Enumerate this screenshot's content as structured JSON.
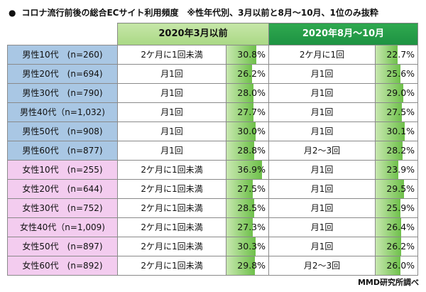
{
  "title": "コロナ流行前後の総合ECサイト利用頻度　※性年代別、3月以前と8月～10月、1位のみ抜粋",
  "header": {
    "period1": "2020年3月以前",
    "period2": "2020年8月～10月"
  },
  "source": "MMD研究所調べ",
  "colors": {
    "male_group": "#a9c7e4",
    "female_group": "#f3ccef",
    "header_period1": "#b9df96",
    "header_period2": "#23994a",
    "bar": "#6ec04a"
  },
  "chart_data": {
    "type": "table",
    "title": "コロナ流行前後の総合ECサイト利用頻度　※性年代別、3月以前と8月～10月、1位のみ抜粋",
    "columns": [
      "",
      "2020年3月以前",
      "",
      "2020年8月～10月",
      ""
    ],
    "rows": [
      {
        "group": "男性10代　(n=260)",
        "gender": "male",
        "freq1": "2ケ月に1回未満",
        "pct1": 30.8,
        "freq2": "2ケ月に1回",
        "pct2": 22.7
      },
      {
        "group": "男性20代　(n=694)",
        "gender": "male",
        "freq1": "月1回",
        "pct1": 26.2,
        "freq2": "月1回",
        "pct2": 25.6
      },
      {
        "group": "男性30代　(n=790)",
        "gender": "male",
        "freq1": "月1回",
        "pct1": 28.0,
        "freq2": "月1回",
        "pct2": 29.0
      },
      {
        "group": "男性40代（n=1,032)",
        "gender": "male",
        "freq1": "月1回",
        "pct1": 27.7,
        "freq2": "月1回",
        "pct2": 27.5
      },
      {
        "group": "男性50代　(n=908)",
        "gender": "male",
        "freq1": "月1回",
        "pct1": 30.0,
        "freq2": "月1回",
        "pct2": 30.1
      },
      {
        "group": "男性60代　(n=877)",
        "gender": "male",
        "freq1": "月1回",
        "pct1": 28.8,
        "freq2": "月2～3回",
        "pct2": 28.2
      },
      {
        "group": "女性10代　(n=255)",
        "gender": "female",
        "freq1": "2ケ月に1回未満",
        "pct1": 36.9,
        "freq2": "月1回",
        "pct2": 23.9
      },
      {
        "group": "女性20代　(n=644)",
        "gender": "female",
        "freq1": "2ケ月に1回未満",
        "pct1": 27.5,
        "freq2": "月1回",
        "pct2": 29.5
      },
      {
        "group": "女性30代　(n=752)",
        "gender": "female",
        "freq1": "2ケ月に1回未満",
        "pct1": 28.5,
        "freq2": "月1回",
        "pct2": 25.9
      },
      {
        "group": "女性40代（n=1,009)",
        "gender": "female",
        "freq1": "2ケ月に1回未満",
        "pct1": 27.3,
        "freq2": "月1回",
        "pct2": 26.4
      },
      {
        "group": "女性50代　(n=897)",
        "gender": "female",
        "freq1": "2ケ月に1回未満",
        "pct1": 30.3,
        "freq2": "月1回",
        "pct2": 26.2
      },
      {
        "group": "女性60代　(n=892)",
        "gender": "female",
        "freq1": "2ケ月に1回未満",
        "pct1": 29.8,
        "freq2": "月2～3回",
        "pct2": 26.0
      }
    ],
    "unit": "%",
    "value_range": [
      0,
      100
    ]
  }
}
